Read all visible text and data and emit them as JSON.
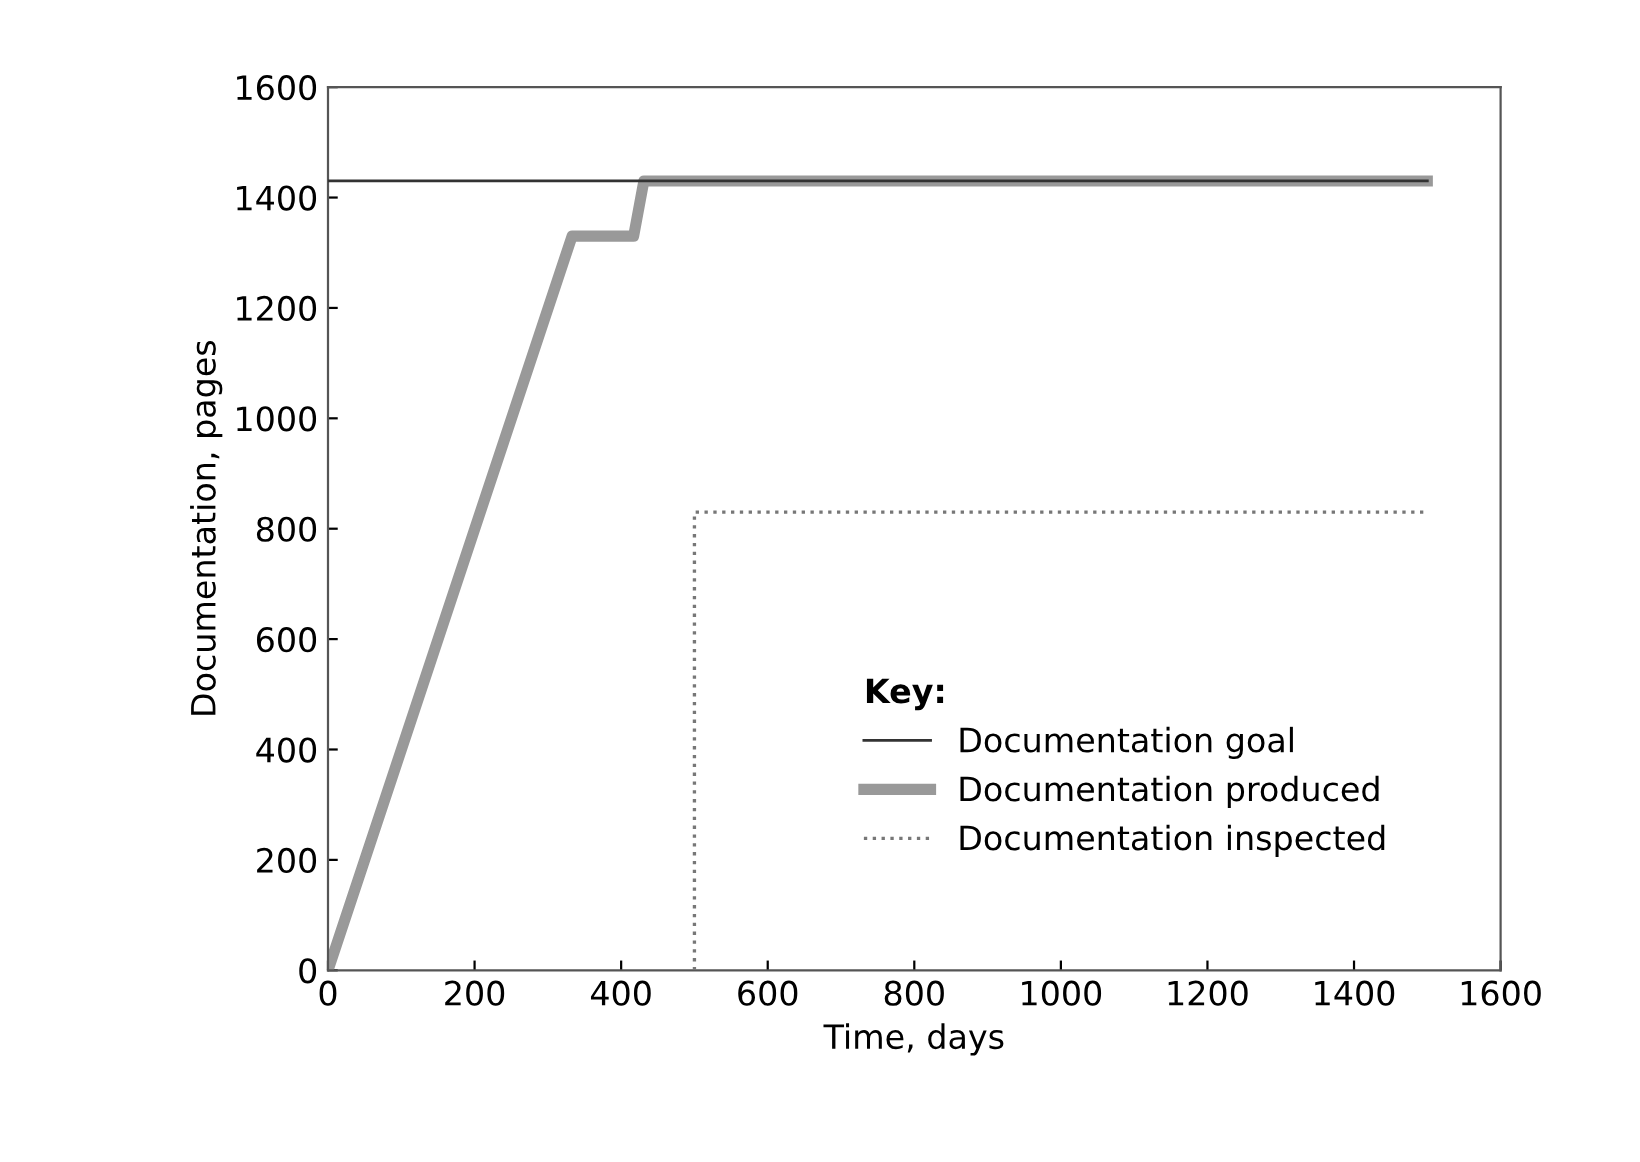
{
  "chart_data": {
    "type": "line",
    "xlabel": "Time, days",
    "ylabel": "Documentation, pages",
    "legend_title": "Key:",
    "legend": "lower right",
    "grid": false,
    "marker": "none",
    "xlim": [
      0,
      1600
    ],
    "ylim": [
      0,
      1600
    ],
    "xticks": [
      0,
      200,
      400,
      600,
      800,
      1000,
      1200,
      1400,
      1600
    ],
    "yticks": [
      0,
      200,
      400,
      600,
      800,
      1000,
      1200,
      1400,
      1600
    ],
    "series": [
      {
        "name": "Documentation goal",
        "color": "#333333",
        "line_style": "solid",
        "x": [
          0,
          1500
        ],
        "values": [
          1430,
          1430
        ]
      },
      {
        "name": "Documentation produced",
        "color": "#999999",
        "line_style": "solid",
        "x": [
          0,
          333,
          417,
          431,
          1500
        ],
        "values": [
          0,
          1330,
          1330,
          1430,
          1430
        ]
      },
      {
        "name": "Documentation inspected",
        "color": "#777777",
        "line_style": "dotted",
        "x": [
          500,
          500,
          1500
        ],
        "values": [
          0,
          830,
          830
        ]
      }
    ]
  }
}
